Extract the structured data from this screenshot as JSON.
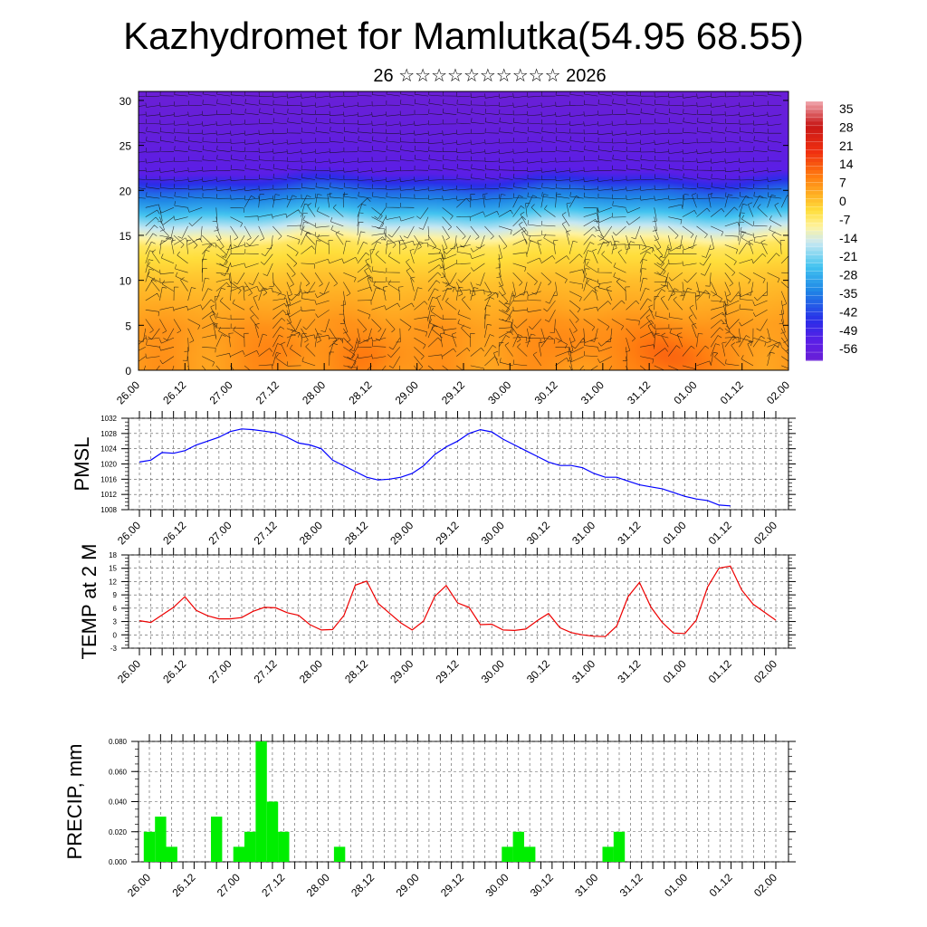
{
  "chart_data": [
    {
      "type": "heatmap",
      "title": "Kazhydromet for Mamlutka(54.95 68.55)",
      "subtitle": "26 ☆☆☆☆☆☆☆☆☆☆ 2026",
      "x_tick_labels": [
        "26.00",
        "26.12",
        "27.00",
        "27.12",
        "28.00",
        "28.12",
        "29.00",
        "29.12",
        "30.00",
        "30.12",
        "31.00",
        "31.12",
        "01.00",
        "01.12",
        "02.00"
      ],
      "y_ticks": [
        0,
        5,
        10,
        15,
        20,
        25,
        30
      ],
      "ylim": [
        0,
        31
      ],
      "colorbar_labels": [
        "35",
        "28",
        "21",
        "14",
        "7",
        "0",
        "-7",
        "-14",
        "-21",
        "-28",
        "-35",
        "-42",
        "-49",
        "-56"
      ],
      "color_scale": [
        {
          "t": -62,
          "color": "#6a1fd6"
        },
        {
          "t": -55,
          "color": "#5b1ee6"
        },
        {
          "t": -47,
          "color": "#2a2ee8"
        },
        {
          "t": -36,
          "color": "#1f86e6"
        },
        {
          "t": -27,
          "color": "#43c4f0"
        },
        {
          "t": -18,
          "color": "#c8e8f2"
        },
        {
          "t": -12,
          "color": "#fff3a0"
        },
        {
          "t": -6,
          "color": "#ffdf3c"
        },
        {
          "t": 0,
          "color": "#ffb125"
        },
        {
          "t": 7,
          "color": "#ff7c10"
        },
        {
          "t": 16,
          "color": "#f03010"
        },
        {
          "t": 26,
          "color": "#c81818"
        },
        {
          "t": 35,
          "color": "#f0a8b0"
        }
      ],
      "temperature_profile": [
        {
          "h": 0,
          "t": 3
        },
        {
          "h": 5,
          "t": 3
        },
        {
          "h": 10,
          "t": -2
        },
        {
          "h": 14,
          "t": -8
        },
        {
          "h": 16,
          "t": -18
        },
        {
          "h": 18,
          "t": -30
        },
        {
          "h": 20,
          "t": -40
        },
        {
          "h": 22,
          "t": -55
        },
        {
          "h": 25,
          "t": -58
        },
        {
          "h": 31,
          "t": -62
        }
      ],
      "warm_spots": [
        {
          "day": 1.6,
          "h": 2,
          "dt": 3
        },
        {
          "day": 2.55,
          "h": 1.5,
          "dt": 4
        },
        {
          "day": 4.7,
          "h": 3,
          "dt": 3
        },
        {
          "day": 5.6,
          "h": 3,
          "dt": 4
        },
        {
          "day": 5.8,
          "h": 0.8,
          "dt": 6
        }
      ]
    },
    {
      "type": "line",
      "ylabel": "PMSL",
      "ylim": [
        1008,
        1032
      ],
      "y_ticks": [
        1008,
        1012,
        1016,
        1020,
        1024,
        1028,
        1032
      ],
      "x_tick_labels": [
        "26.00",
        "26.12",
        "27.00",
        "27.12",
        "28.00",
        "28.12",
        "29.00",
        "29.12",
        "30.00",
        "30.12",
        "31.00",
        "31.12",
        "01.00",
        "01.12",
        "02.00"
      ],
      "x_step_hours": 3,
      "series": [
        {
          "name": "PMSL",
          "color": "#0000ff",
          "values": [
            1020.5,
            1021.0,
            1023.0,
            1022.8,
            1023.5,
            1025.0,
            1026.0,
            1027.0,
            1028.5,
            1029.2,
            1029.0,
            1028.6,
            1028.2,
            1027.0,
            1025.5,
            1025.0,
            1024.0,
            1021.0,
            1019.5,
            1018.0,
            1016.5,
            1015.8,
            1016.0,
            1016.5,
            1017.5,
            1019.5,
            1022.5,
            1024.5,
            1026.0,
            1028.0,
            1029.0,
            1028.4,
            1026.5,
            1025.0,
            1023.5,
            1022.0,
            1020.5,
            1019.6,
            1019.6,
            1019.0,
            1017.5,
            1016.5,
            1016.5,
            1015.5,
            1014.5,
            1014.0,
            1013.5,
            1012.5,
            1011.5,
            1010.8,
            1010.4,
            1009.2,
            1009.0
          ]
        }
      ]
    },
    {
      "type": "line",
      "ylabel": "TEMP at 2 M",
      "ylim": [
        -3,
        18
      ],
      "y_ticks": [
        -3,
        0,
        3,
        6,
        9,
        12,
        15,
        18
      ],
      "x_tick_labels": [
        "26.00",
        "26.12",
        "27.00",
        "27.12",
        "28.00",
        "28.12",
        "29.00",
        "29.12",
        "30.00",
        "30.12",
        "31.00",
        "31.12",
        "01.00",
        "01.12",
        "02.00"
      ],
      "x_step_hours": 3,
      "series": [
        {
          "name": "TEMP",
          "color": "#ee0000",
          "values": [
            3.2,
            2.8,
            4.5,
            6.2,
            8.6,
            5.5,
            4.3,
            3.6,
            3.6,
            3.9,
            5.3,
            6.2,
            6.1,
            5.0,
            4.4,
            2.3,
            1.1,
            1.2,
            4.4,
            11.2,
            12.1,
            7.1,
            4.9,
            2.7,
            1.1,
            3.1,
            8.7,
            11.1,
            7.2,
            6.2,
            2.3,
            2.4,
            1.1,
            1.0,
            1.3,
            3.2,
            4.8,
            1.6,
            0.5,
            0.0,
            -0.3,
            -0.4,
            2.0,
            8.6,
            11.8,
            6.3,
            2.8,
            0.4,
            0.3,
            3.3,
            10.8,
            15.0,
            15.5,
            10.1,
            6.9,
            5.1,
            3.3
          ]
        }
      ]
    },
    {
      "type": "bar",
      "ylabel": "PRECIP, mm",
      "ylim": [
        0,
        0.08
      ],
      "y_ticks": [
        "0.000",
        "0.020",
        "0.040",
        "0.060",
        "0.080"
      ],
      "x_tick_labels": [
        "26.00",
        "26.12",
        "27.00",
        "27.12",
        "28.00",
        "28.12",
        "29.00",
        "29.12",
        "30.00",
        "30.12",
        "31.00",
        "31.12",
        "01.00",
        "01.12",
        "02.00"
      ],
      "x_step_hours": 3,
      "color": "#00ee00",
      "values": [
        0.02,
        0.03,
        0.01,
        0,
        0,
        0,
        0.03,
        0,
        0.01,
        0.02,
        0.08,
        0.04,
        0.02,
        0,
        0,
        0,
        0,
        0.01,
        0,
        0,
        0,
        0,
        0,
        0,
        0,
        0,
        0,
        0,
        0,
        0,
        0,
        0,
        0.01,
        0.02,
        0.01,
        0,
        0,
        0,
        0,
        0,
        0,
        0.01,
        0.02,
        0,
        0,
        0,
        0,
        0,
        0,
        0,
        0,
        0,
        0,
        0,
        0,
        0,
        0
      ]
    }
  ]
}
